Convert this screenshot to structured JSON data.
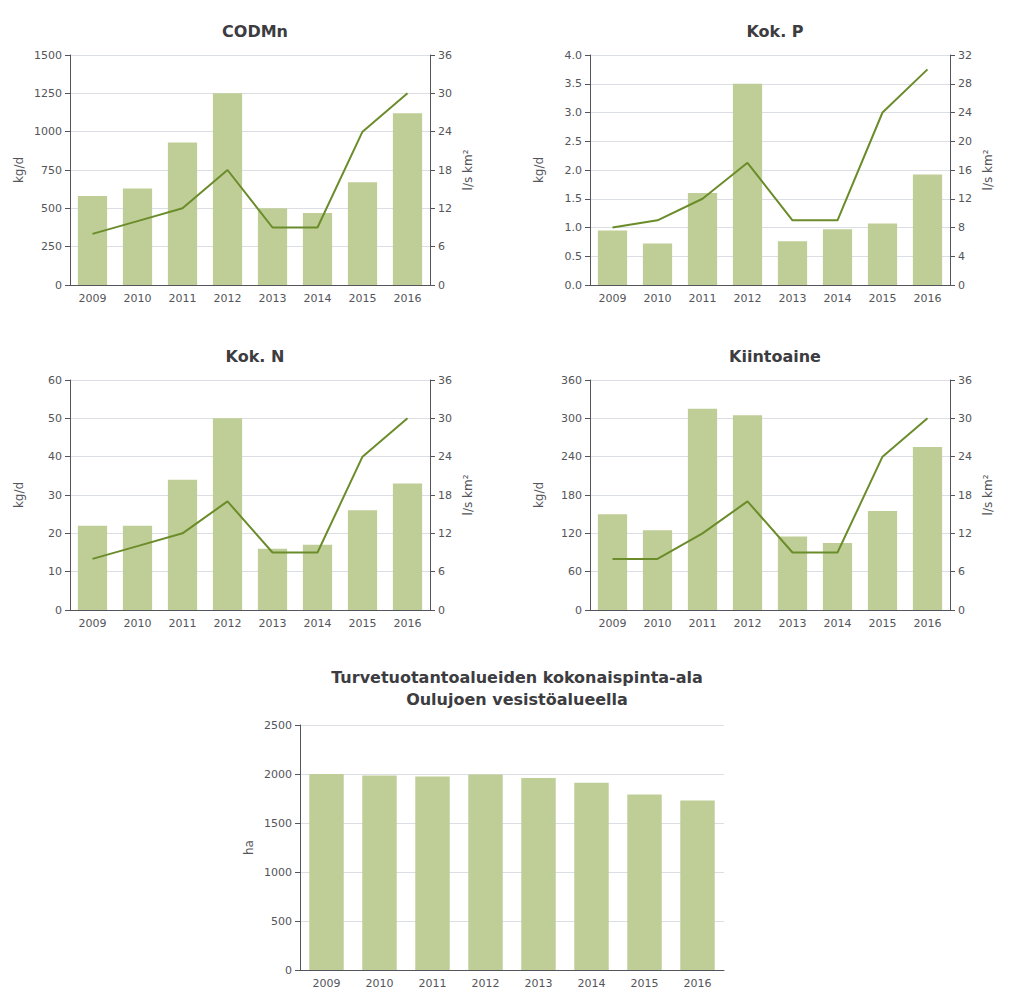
{
  "chart_data": [
    {
      "type": "bar",
      "title": "CODMn",
      "categories": [
        "2009",
        "2010",
        "2011",
        "2012",
        "2013",
        "2014",
        "2015",
        "2016"
      ],
      "ylabel": "kg/d",
      "y2label": "l/s km²",
      "ylim": [
        0,
        1500
      ],
      "yticks": [
        0,
        250,
        500,
        750,
        1000,
        1250,
        1500
      ],
      "y2lim": [
        0,
        36
      ],
      "y2ticks": [
        0,
        6,
        12,
        18,
        24,
        30,
        36
      ],
      "grid": true,
      "series": [
        {
          "type": "bar",
          "color": "#bfce96",
          "values": [
            580,
            630,
            930,
            1250,
            500,
            470,
            670,
            1120
          ]
        },
        {
          "type": "line",
          "color": "#6b8c2a",
          "axis": "y2",
          "values": [
            8,
            10,
            12,
            18,
            9,
            9,
            24,
            30
          ]
        }
      ]
    },
    {
      "type": "bar",
      "title": "Kok. P",
      "categories": [
        "2009",
        "2010",
        "2011",
        "2012",
        "2013",
        "2014",
        "2015",
        "2016"
      ],
      "ylabel": "kg/d",
      "y2label": "l/s km²",
      "ylim": [
        0,
        4.0
      ],
      "yticks": [
        {
          "value": 0,
          "label": "0.0"
        },
        0.5,
        {
          "value": 1,
          "label": "1.0"
        },
        1.5,
        {
          "value": 2,
          "label": "2.0"
        },
        2.5,
        {
          "value": 3,
          "label": "3.0"
        },
        3.5,
        {
          "value": 4,
          "label": "4.0"
        }
      ],
      "y2lim": [
        0,
        32
      ],
      "y2ticks": [
        0,
        4,
        8,
        12,
        16,
        20,
        24,
        28,
        32
      ],
      "grid": true,
      "series": [
        {
          "type": "bar",
          "color": "#bfce96",
          "values": [
            0.95,
            0.72,
            1.6,
            3.5,
            0.76,
            0.97,
            1.07,
            1.92
          ]
        },
        {
          "type": "line",
          "color": "#6b8c2a",
          "axis": "y2",
          "values": [
            8,
            9,
            12,
            17,
            9,
            9,
            24,
            30
          ]
        }
      ]
    },
    {
      "type": "bar",
      "title": "Kok. N",
      "categories": [
        "2009",
        "2010",
        "2011",
        "2012",
        "2013",
        "2014",
        "2015",
        "2016"
      ],
      "ylabel": "kg/d",
      "y2label": "l/s km²",
      "ylim": [
        0,
        60
      ],
      "yticks": [
        0,
        10,
        20,
        30,
        40,
        50,
        60
      ],
      "y2lim": [
        0,
        36
      ],
      "y2ticks": [
        0,
        6,
        12,
        18,
        24,
        30,
        36
      ],
      "grid": true,
      "series": [
        {
          "type": "bar",
          "color": "#bfce96",
          "values": [
            22,
            22,
            34,
            50,
            16,
            17,
            26,
            33
          ]
        },
        {
          "type": "line",
          "color": "#6b8c2a",
          "axis": "y2",
          "values": [
            8,
            10,
            12,
            17,
            9,
            9,
            24,
            30
          ]
        }
      ]
    },
    {
      "type": "bar",
      "title": "Kiintoaine",
      "categories": [
        "2009",
        "2010",
        "2011",
        "2012",
        "2013",
        "2014",
        "2015",
        "2016"
      ],
      "ylabel": "kg/d",
      "y2label": "l/s km²",
      "ylim": [
        0,
        360
      ],
      "yticks": [
        0,
        60,
        120,
        180,
        240,
        300,
        360
      ],
      "y2lim": [
        0,
        36
      ],
      "y2ticks": [
        0,
        6,
        12,
        18,
        24,
        30,
        36
      ],
      "grid": true,
      "series": [
        {
          "type": "bar",
          "color": "#bfce96",
          "values": [
            150,
            125,
            315,
            305,
            115,
            105,
            155,
            255
          ]
        },
        {
          "type": "line",
          "color": "#6b8c2a",
          "axis": "y2",
          "values": [
            8,
            8,
            12,
            17,
            9,
            9,
            24,
            30
          ]
        }
      ]
    },
    {
      "type": "bar",
      "title": "Turvetuotantoalueiden kokonaispinta-ala\nOulujoen vesistöalueella",
      "categories": [
        "2009",
        "2010",
        "2011",
        "2012",
        "2013",
        "2014",
        "2015",
        "2016"
      ],
      "ylabel": "ha",
      "ylim": [
        0,
        2500
      ],
      "yticks": [
        0,
        500,
        1000,
        1500,
        2000,
        2500
      ],
      "grid": true,
      "series": [
        {
          "type": "bar",
          "color": "#bfce96",
          "values": [
            2000,
            1985,
            1975,
            1995,
            1960,
            1910,
            1790,
            1730
          ]
        }
      ]
    }
  ]
}
